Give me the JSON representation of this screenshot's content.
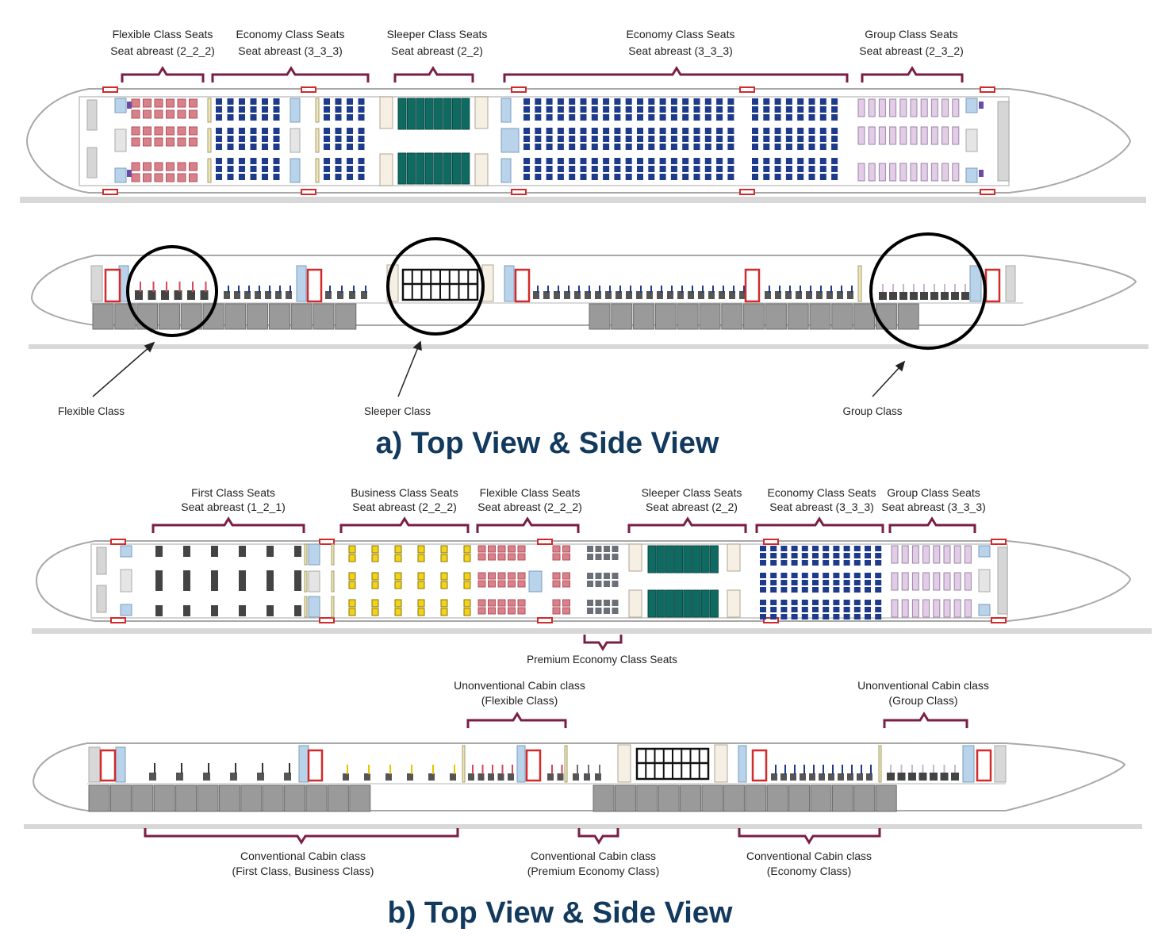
{
  "panel_a": {
    "title": "a) Top View & Side View",
    "top_labels": [
      {
        "line1": "Flexible Class Seats",
        "line2": "Seat abreast (2_2_2)"
      },
      {
        "line1": "Economy Class Seats",
        "line2": "Seat abreast (3_3_3)"
      },
      {
        "line1": "Sleeper Class Seats",
        "line2": "Seat abreast (2_2)"
      },
      {
        "line1": "Economy Class Seats",
        "line2": "Seat abreast (3_3_3)"
      },
      {
        "line1": "Group Class Seats",
        "line2": "Seat abreast (2_3_2)"
      }
    ],
    "callouts": [
      "Flexible Class",
      "Sleeper Class",
      "Group Class"
    ]
  },
  "panel_b": {
    "title": "b) Top View & Side View",
    "top_labels": [
      {
        "line1": "First Class Seats",
        "line2": "Seat abreast (1_2_1)"
      },
      {
        "line1": "Business Class Seats",
        "line2": "Seat abreast (2_2_2)"
      },
      {
        "line1": "Flexible Class Seats",
        "line2": "Seat abreast (2_2_2)"
      },
      {
        "line1": "Sleeper Class Seats",
        "line2": "Seat abreast (2_2)"
      },
      {
        "line1": "Economy Class Seats",
        "line2": "Seat abreast (3_3_3)"
      },
      {
        "line1": "Group Class Seats",
        "line2": "Seat abreast (3_3_3)"
      }
    ],
    "premium_label": "Premium Economy Class Seats",
    "unconventional_labels": [
      {
        "line1": "Unonventional Cabin class",
        "line2": "(Flexible Class)"
      },
      {
        "line1": "Unonventional Cabin class",
        "line2": "(Group Class)"
      }
    ],
    "conventional_labels": [
      {
        "line1": "Conventional Cabin class",
        "line2": "(First Class, Business Class)"
      },
      {
        "line1": "Conventional Cabin class",
        "line2": "(Premium Economy Class)"
      },
      {
        "line1": "Conventional Cabin class",
        "line2": "(Economy Class)"
      }
    ]
  },
  "colors": {
    "title": "#12395e",
    "bracket": "#7a1e45",
    "economy_seat": "#1e3a8a",
    "sleeper_berth": "#0f6b62",
    "flexible_seat": "#d9818a",
    "group_seat": "#e3cce6",
    "business_seat": "#f2d21b",
    "first_seat": "#444444",
    "premium_seat": "#6a6f78",
    "door": "#d22a2a",
    "galley": "#b9d3ea",
    "cargo": "#9a9a9a",
    "fuselage_line": "#a8a8a8"
  }
}
